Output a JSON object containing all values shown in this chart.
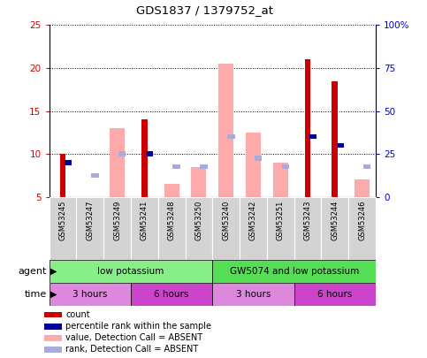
{
  "title": "GDS1837 / 1379752_at",
  "samples": [
    "GSM53245",
    "GSM53247",
    "GSM53249",
    "GSM53241",
    "GSM53248",
    "GSM53250",
    "GSM53240",
    "GSM53242",
    "GSM53251",
    "GSM53243",
    "GSM53244",
    "GSM53246"
  ],
  "count_values": [
    10,
    0,
    0,
    14,
    0,
    0,
    0,
    0,
    0,
    21,
    18.5,
    0
  ],
  "percentile_values": [
    9,
    0,
    0,
    10,
    0,
    0,
    0,
    0,
    0,
    12,
    11,
    0
  ],
  "value_absent": [
    0,
    0,
    13,
    0,
    6.5,
    8.5,
    20.5,
    12.5,
    9,
    0,
    0,
    7
  ],
  "rank_absent": [
    0,
    7.5,
    10,
    0,
    8.5,
    8.5,
    12,
    9.5,
    8.5,
    0,
    0,
    8.5
  ],
  "ylim_left": [
    5,
    25
  ],
  "ylim_right": [
    0,
    100
  ],
  "yticks_left": [
    5,
    10,
    15,
    20,
    25
  ],
  "yticks_right": [
    0,
    25,
    50,
    75,
    100
  ],
  "ytick_labels_right": [
    "0",
    "25",
    "50",
    "75",
    "100%"
  ],
  "color_count": "#cc0000",
  "color_percentile": "#000099",
  "color_value_absent": "#ffaaaa",
  "color_rank_absent": "#aaaadd",
  "agent_groups": [
    {
      "label": "low potassium",
      "start": 0,
      "end": 6,
      "color": "#88ee88"
    },
    {
      "label": "GW5074 and low potassium",
      "start": 6,
      "end": 12,
      "color": "#55dd55"
    }
  ],
  "time_groups": [
    {
      "label": "3 hours",
      "start": 0,
      "end": 3,
      "color": "#dd88dd"
    },
    {
      "label": "6 hours",
      "start": 3,
      "end": 6,
      "color": "#cc44cc"
    },
    {
      "label": "3 hours",
      "start": 6,
      "end": 9,
      "color": "#dd88dd"
    },
    {
      "label": "6 hours",
      "start": 9,
      "end": 12,
      "color": "#cc44cc"
    }
  ],
  "legend_items": [
    {
      "label": "count",
      "color": "#cc0000"
    },
    {
      "label": "percentile rank within the sample",
      "color": "#000099"
    },
    {
      "label": "value, Detection Call = ABSENT",
      "color": "#ffaaaa"
    },
    {
      "label": "rank, Detection Call = ABSENT",
      "color": "#aaaadd"
    }
  ],
  "axis_label_color_left": "#cc0000",
  "axis_label_color_right": "#0000cc"
}
